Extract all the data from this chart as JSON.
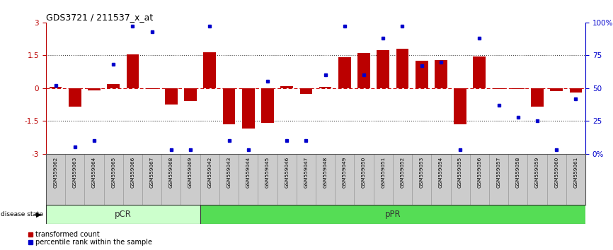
{
  "title": "GDS3721 / 211537_x_at",
  "samples": [
    "GSM559062",
    "GSM559063",
    "GSM559064",
    "GSM559065",
    "GSM559066",
    "GSM559067",
    "GSM559068",
    "GSM559069",
    "GSM559042",
    "GSM559043",
    "GSM559044",
    "GSM559045",
    "GSM559046",
    "GSM559047",
    "GSM559048",
    "GSM559049",
    "GSM559050",
    "GSM559051",
    "GSM559052",
    "GSM559053",
    "GSM559054",
    "GSM559055",
    "GSM559056",
    "GSM559057",
    "GSM559058",
    "GSM559059",
    "GSM559060",
    "GSM559061"
  ],
  "bar_values": [
    0.05,
    -0.85,
    -0.1,
    0.2,
    1.55,
    -0.05,
    -0.75,
    -0.6,
    1.65,
    -1.65,
    -1.85,
    -1.6,
    0.1,
    -0.25,
    0.05,
    1.4,
    1.6,
    1.75,
    1.8,
    1.25,
    1.3,
    -1.65,
    1.45,
    -0.05,
    -0.05,
    -0.85,
    -0.15,
    -0.2
  ],
  "percentile_values": [
    52,
    5,
    10,
    68,
    97,
    93,
    3,
    3,
    97,
    10,
    3,
    55,
    10,
    10,
    60,
    97,
    60,
    88,
    97,
    67,
    70,
    3,
    88,
    37,
    28,
    25,
    3,
    42
  ],
  "pcr_count": 8,
  "ppr_count": 20,
  "ylim": [
    -3,
    3
  ],
  "yticks_left": [
    -3,
    -1.5,
    0,
    1.5,
    3
  ],
  "ytick_labels_left": [
    "-3",
    "-1.5",
    "0",
    "1.5",
    "3"
  ],
  "ytick_labels_right": [
    "0%",
    "25",
    "50",
    "75",
    "100%"
  ],
  "bar_color": "#bb0000",
  "dot_color": "#0000cc",
  "pcr_color": "#ccffcc",
  "ppr_color": "#55dd55",
  "zero_line_color": "#cc0000",
  "dotted_line_color": "#444444",
  "background_color": "#ffffff",
  "xtick_bg_color": "#cccccc",
  "legend_red_label": "transformed count",
  "legend_blue_label": "percentile rank within the sample",
  "disease_state_label": "disease state"
}
